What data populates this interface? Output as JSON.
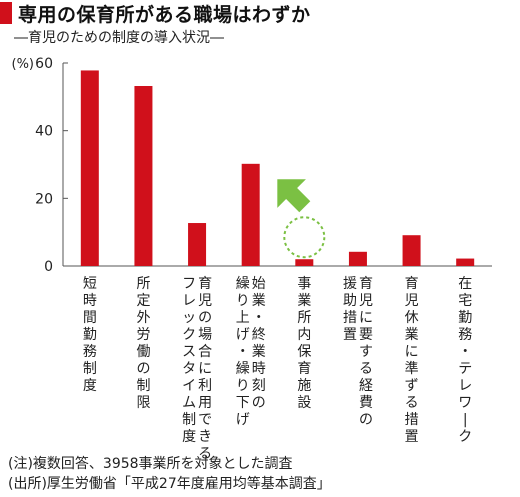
{
  "title": "専用の保育所がある職場はわずか",
  "subtitle": "―育児のための制度の導入状況―",
  "colors": {
    "bar": "#d0101b",
    "highlight_arrow": "#7bc043",
    "highlight_circle": "#7bc043"
  },
  "chart_data": {
    "type": "bar",
    "unit_label": "(%)",
    "ylim": [
      0,
      60
    ],
    "yticks": [
      0,
      20,
      40,
      60
    ],
    "grid": false,
    "categories": [
      "短時間勤務制度",
      "所定外労働の制限",
      "育児の場合に利用できるフレックスタイム制度",
      "始業・終業時刻の繰り上げ・繰り下げ",
      "事業所内保育施設",
      "育児に要する経費の援助措置",
      "育児休業に準ずる措置",
      "在宅勤務・テレワーク"
    ],
    "category_lines": [
      [
        "短時間勤務制度"
      ],
      [
        "所定外労働の制限"
      ],
      [
        "育児の場合に利用できる",
        "フレックスタイム制度"
      ],
      [
        "始業・終業時刻の",
        "繰り上げ・繰り下げ"
      ],
      [
        "事業所内保育施設"
      ],
      [
        "育児に要する経費の",
        "援助措置"
      ],
      [
        "育児休業に準ずる措置"
      ],
      [
        "在宅勤務・テレワーク"
      ]
    ],
    "values": [
      57.8,
      53.2,
      12.7,
      30.2,
      2.0,
      4.2,
      9.1,
      2.2
    ],
    "highlight_index": 4
  },
  "notes": [
    "(注)複数回答、3958事業所を対象とした調査",
    "(出所)厚生労働省「平成27年度雇用均等基本調査」"
  ]
}
